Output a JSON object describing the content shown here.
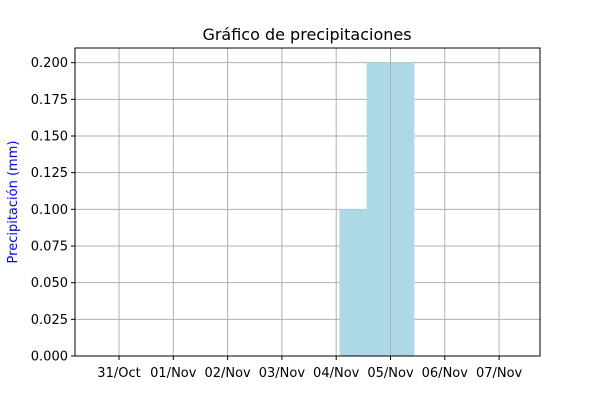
{
  "chart_data": {
    "type": "bar",
    "title": "Gráfico de precipitaciones",
    "xlabel": "",
    "ylabel": "Precipitación (mm)",
    "ylim": [
      0,
      0.21
    ],
    "grid": true,
    "x_ticks": [
      "31/Oct",
      "01/Nov",
      "02/Nov",
      "03/Nov",
      "04/Nov",
      "05/Nov",
      "06/Nov",
      "07/Nov"
    ],
    "y_ticks": [
      "0.000",
      "0.025",
      "0.050",
      "0.075",
      "0.100",
      "0.125",
      "0.150",
      "0.175",
      "0.200"
    ],
    "bars": [
      {
        "date": "04/Nov 12:00",
        "value": 0.1
      },
      {
        "date": "05/Nov 00:00",
        "value": 0.2
      }
    ],
    "colors": {
      "bar": "#add8e6",
      "ylabel": "#0000ff",
      "grid": "#b0b0b0"
    }
  }
}
